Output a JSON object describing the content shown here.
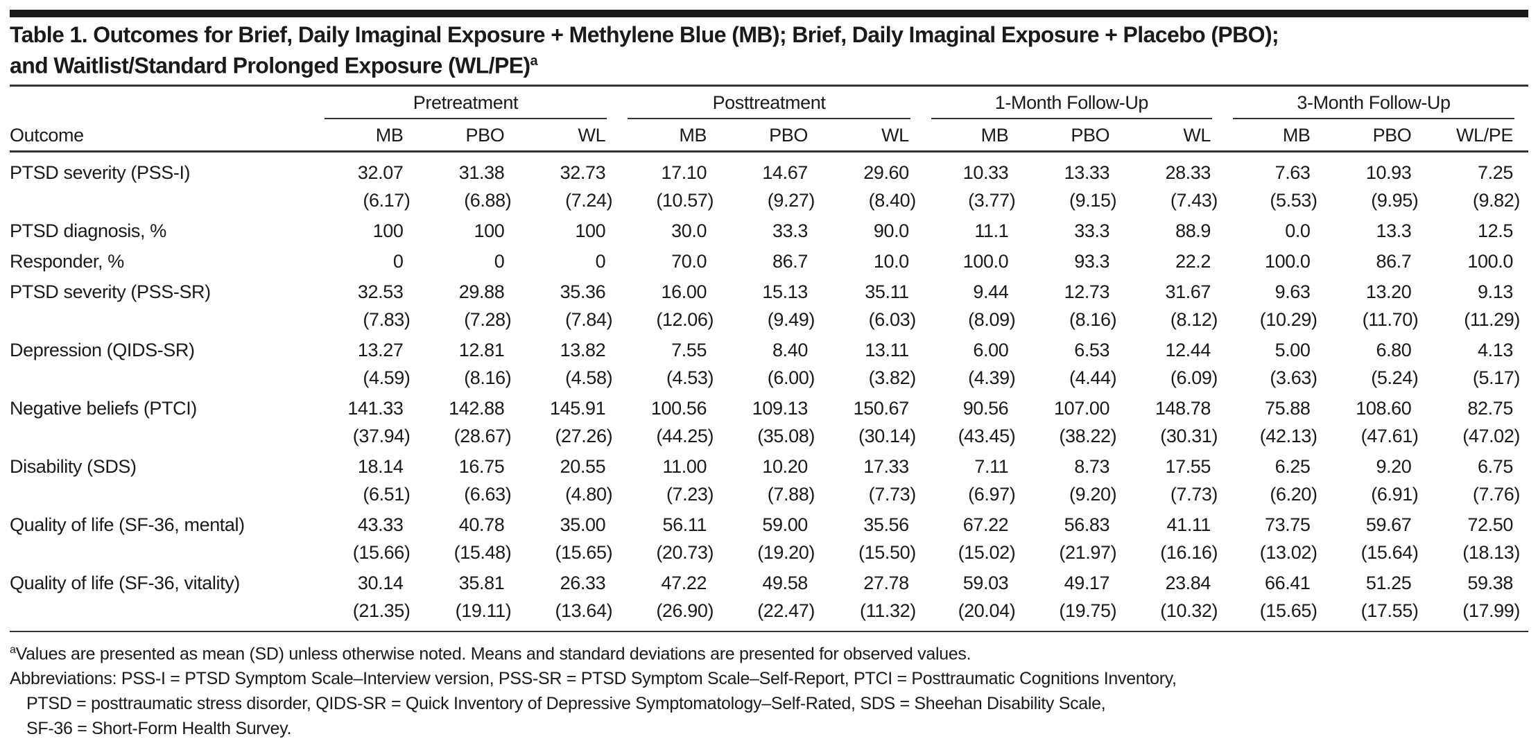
{
  "title": {
    "line1": "Table 1. Outcomes for Brief, Daily Imaginal Exposure + Methylene Blue (MB); Brief, Daily Imaginal Exposure + Placebo (PBO);",
    "line2": "and Waitlist/Standard Prolonged Exposure (WL/PE)",
    "sup": "a"
  },
  "header": {
    "outcome": "Outcome",
    "groups": [
      "Pretreatment",
      "Posttreatment",
      "1-Month Follow-Up",
      "3-Month Follow-Up"
    ],
    "columns": [
      "MB",
      "PBO",
      "WL",
      "MB",
      "PBO",
      "WL",
      "MB",
      "PBO",
      "WL",
      "MB",
      "PBO",
      "WL/PE"
    ]
  },
  "rows": [
    {
      "label": "PTSD severity (PSS-I)",
      "values": [
        "32.07",
        "31.38",
        "32.73",
        "17.10",
        "14.67",
        "29.60",
        "10.33",
        "13.33",
        "28.33",
        "7.63",
        "10.93",
        "7.25"
      ],
      "sds": [
        "(6.17)",
        "(6.88)",
        "(7.24)",
        "(10.57)",
        "(9.27)",
        "(8.40)",
        "(3.77)",
        "(9.15)",
        "(7.43)",
        "(5.53)",
        "(9.95)",
        "(9.82)"
      ]
    },
    {
      "label": "PTSD diagnosis, %",
      "values": [
        "100",
        "100",
        "100",
        "30.0",
        "33.3",
        "90.0",
        "11.1",
        "33.3",
        "88.9",
        "0.0",
        "13.3",
        "12.5"
      ],
      "sds": null
    },
    {
      "label": "Responder, %",
      "values": [
        "0",
        "0",
        "0",
        "70.0",
        "86.7",
        "10.0",
        "100.0",
        "93.3",
        "22.2",
        "100.0",
        "86.7",
        "100.0"
      ],
      "sds": null
    },
    {
      "label": "PTSD severity (PSS-SR)",
      "values": [
        "32.53",
        "29.88",
        "35.36",
        "16.00",
        "15.13",
        "35.11",
        "9.44",
        "12.73",
        "31.67",
        "9.63",
        "13.20",
        "9.13"
      ],
      "sds": [
        "(7.83)",
        "(7.28)",
        "(7.84)",
        "(12.06)",
        "(9.49)",
        "(6.03)",
        "(8.09)",
        "(8.16)",
        "(8.12)",
        "(10.29)",
        "(11.70)",
        "(11.29)"
      ]
    },
    {
      "label": "Depression (QIDS-SR)",
      "values": [
        "13.27",
        "12.81",
        "13.82",
        "7.55",
        "8.40",
        "13.11",
        "6.00",
        "6.53",
        "12.44",
        "5.00",
        "6.80",
        "4.13"
      ],
      "sds": [
        "(4.59)",
        "(8.16)",
        "(4.58)",
        "(4.53)",
        "(6.00)",
        "(3.82)",
        "(4.39)",
        "(4.44)",
        "(6.09)",
        "(3.63)",
        "(5.24)",
        "(5.17)"
      ]
    },
    {
      "label": "Negative beliefs (PTCI)",
      "values": [
        "141.33",
        "142.88",
        "145.91",
        "100.56",
        "109.13",
        "150.67",
        "90.56",
        "107.00",
        "148.78",
        "75.88",
        "108.60",
        "82.75"
      ],
      "sds": [
        "(37.94)",
        "(28.67)",
        "(27.26)",
        "(44.25)",
        "(35.08)",
        "(30.14)",
        "(43.45)",
        "(38.22)",
        "(30.31)",
        "(42.13)",
        "(47.61)",
        "(47.02)"
      ]
    },
    {
      "label": "Disability (SDS)",
      "values": [
        "18.14",
        "16.75",
        "20.55",
        "11.00",
        "10.20",
        "17.33",
        "7.11",
        "8.73",
        "17.55",
        "6.25",
        "9.20",
        "6.75"
      ],
      "sds": [
        "(6.51)",
        "(6.63)",
        "(4.80)",
        "(7.23)",
        "(7.88)",
        "(7.73)",
        "(6.97)",
        "(9.20)",
        "(7.73)",
        "(6.20)",
        "(6.91)",
        "(7.76)"
      ]
    },
    {
      "label": "Quality of life (SF-36, mental)",
      "values": [
        "43.33",
        "40.78",
        "35.00",
        "56.11",
        "59.00",
        "35.56",
        "67.22",
        "56.83",
        "41.11",
        "73.75",
        "59.67",
        "72.50"
      ],
      "sds": [
        "(15.66)",
        "(15.48)",
        "(15.65)",
        "(20.73)",
        "(19.20)",
        "(15.50)",
        "(15.02)",
        "(21.97)",
        "(16.16)",
        "(13.02)",
        "(15.64)",
        "(18.13)"
      ]
    },
    {
      "label": "Quality of life (SF-36, vitality)",
      "values": [
        "30.14",
        "35.81",
        "26.33",
        "47.22",
        "49.58",
        "27.78",
        "59.03",
        "49.17",
        "23.84",
        "66.41",
        "51.25",
        "59.38"
      ],
      "sds": [
        "(21.35)",
        "(19.11)",
        "(13.64)",
        "(26.90)",
        "(22.47)",
        "(11.32)",
        "(20.04)",
        "(19.75)",
        "(10.32)",
        "(15.65)",
        "(17.55)",
        "(17.99)"
      ]
    }
  ],
  "footnotes": {
    "a_sup": "a",
    "a_text": "Values are presented as mean (SD) unless otherwise noted. Means and standard deviations are presented for observed values.",
    "abbr1": "Abbreviations: PSS-I = PTSD Symptom Scale–Interview version, PSS-SR = PTSD Symptom Scale–Self-Report, PTCI = Posttraumatic Cognitions Inventory,",
    "abbr2": "PTSD = posttraumatic stress disorder, QIDS-SR = Quick Inventory of Depressive Symptomatology–Self-Rated, SDS = Sheehan Disability Scale,",
    "abbr3": "SF-36 = Short-Form Health Survey."
  }
}
